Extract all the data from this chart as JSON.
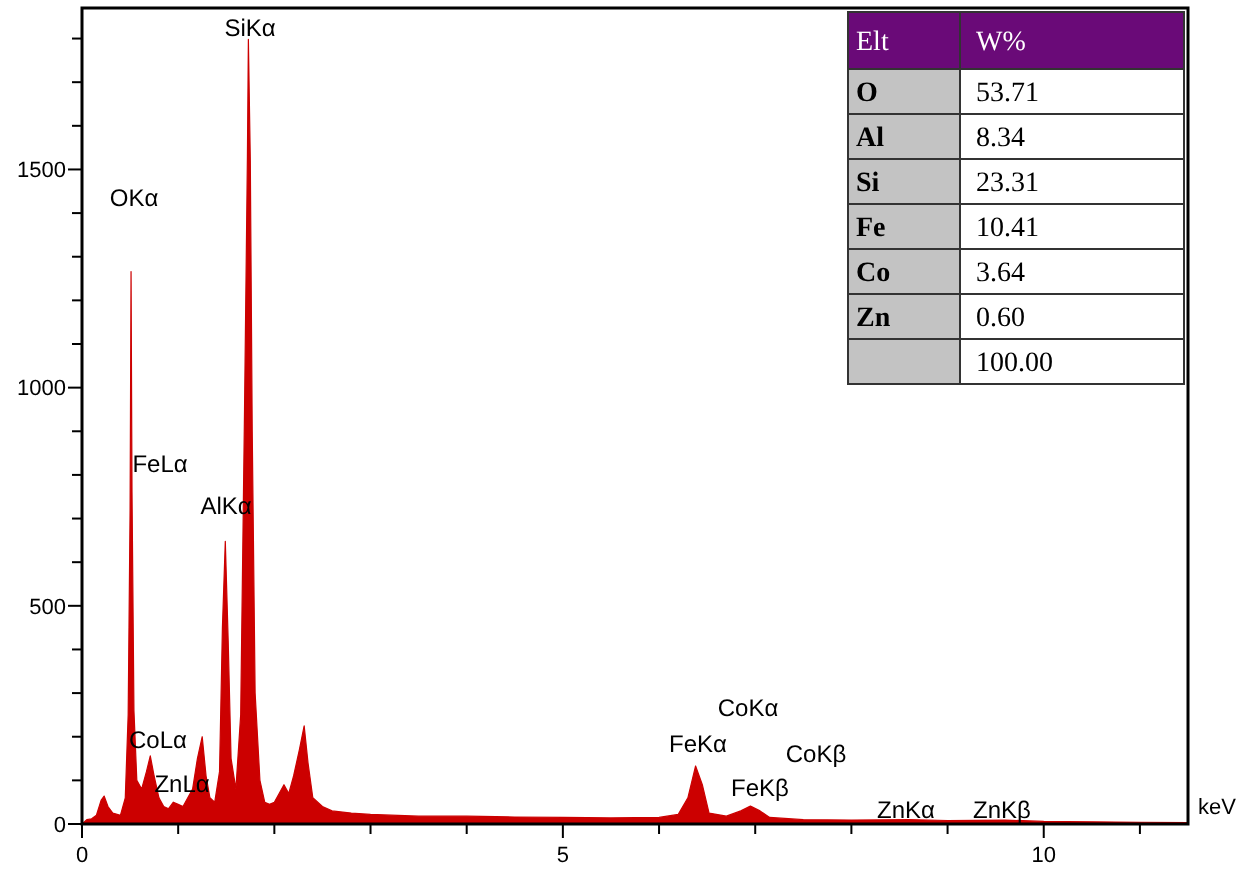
{
  "chart_data": [
    {
      "type": "area",
      "xlabel": "keV",
      "x": [
        0,
        0.05,
        0.1,
        0.15,
        0.2,
        0.23,
        0.27,
        0.32,
        0.4,
        0.45,
        0.48,
        0.5,
        0.51,
        0.52,
        0.54,
        0.57,
        0.62,
        0.67,
        0.71,
        0.75,
        0.8,
        0.85,
        0.9,
        0.95,
        1.0,
        1.05,
        1.1,
        1.15,
        1.2,
        1.25,
        1.29,
        1.33,
        1.38,
        1.43,
        1.46,
        1.49,
        1.52,
        1.55,
        1.6,
        1.65,
        1.69,
        1.72,
        1.73,
        1.75,
        1.77,
        1.8,
        1.85,
        1.9,
        1.95,
        2.0,
        2.05,
        2.1,
        2.15,
        2.2,
        2.26,
        2.31,
        2.35,
        2.4,
        2.5,
        2.6,
        2.8,
        3.0,
        3.5,
        4.0,
        4.5,
        5.0,
        5.5,
        6.0,
        6.2,
        6.3,
        6.38,
        6.45,
        6.52,
        6.7,
        6.85,
        6.95,
        7.05,
        7.15,
        7.5,
        8.0,
        8.6,
        9.0,
        9.6,
        10.0,
        10.5,
        11.0,
        11.5
      ],
      "series": [
        {
          "color": "#cc0000",
          "values": [
            0,
            10,
            12,
            20,
            55,
            64,
            40,
            25,
            20,
            60,
            250,
            720,
            1266,
            760,
            260,
            100,
            80,
            120,
            156,
            110,
            60,
            40,
            35,
            50,
            45,
            40,
            60,
            80,
            150,
            200,
            110,
            60,
            50,
            120,
            450,
            648,
            420,
            150,
            80,
            250,
            950,
            1530,
            1798,
            1520,
            900,
            300,
            100,
            50,
            45,
            50,
            70,
            90,
            70,
            110,
            170,
            225,
            140,
            60,
            40,
            30,
            25,
            22,
            18,
            18,
            16,
            15,
            14,
            15,
            22,
            60,
            133,
            90,
            25,
            18,
            30,
            41,
            30,
            15,
            10,
            9,
            10,
            8,
            9,
            6,
            5,
            4,
            3
          ]
        }
      ],
      "xlim": [
        0,
        11.5
      ],
      "xticks": [
        0,
        {
          "value": 1,
          "label": null
        },
        {
          "value": 2,
          "label": null
        },
        {
          "value": 3,
          "label": null
        },
        {
          "value": 4,
          "label": null
        },
        5,
        {
          "value": 6,
          "label": null
        },
        {
          "value": 7,
          "label": null
        },
        {
          "value": 8,
          "label": null
        },
        {
          "value": 9,
          "label": null
        },
        10,
        {
          "value": 11,
          "label": null
        }
      ],
      "ylim": [
        0,
        1870
      ],
      "yticks": [
        0,
        {
          "value": 100,
          "label": null
        },
        {
          "value": 200,
          "label": null
        },
        {
          "value": 300,
          "label": null
        },
        {
          "value": 400,
          "label": null
        },
        500,
        {
          "value": 600,
          "label": null
        },
        {
          "value": 700,
          "label": null
        },
        {
          "value": 800,
          "label": null
        },
        {
          "value": 900,
          "label": null
        },
        1000,
        {
          "value": 1100,
          "label": null
        },
        {
          "value": 1200,
          "label": null
        },
        {
          "value": 1300,
          "label": null
        },
        {
          "value": 1400,
          "label": null
        },
        1500,
        {
          "value": 1600,
          "label": null
        },
        {
          "value": 1700,
          "label": null
        },
        {
          "value": 1800,
          "label": null
        }
      ],
      "grid": false,
      "annotations": [
        "SiKα",
        "OKα",
        "FeLα",
        "AlKα",
        "CoLα",
        "ZnLα",
        "CoKα",
        "FeKα",
        "CoKβ",
        "FeKβ",
        "ZnKα",
        "ZnKβ"
      ]
    },
    {
      "type": "other",
      "annotations": [
        "Elt",
        "W%",
        "O",
        "53.71",
        "Al",
        "8.34",
        "Si",
        "23.31",
        "Fe",
        "10.41",
        "Co",
        "3.64",
        "Zn",
        "0.60",
        "100.00"
      ]
    }
  ]
}
